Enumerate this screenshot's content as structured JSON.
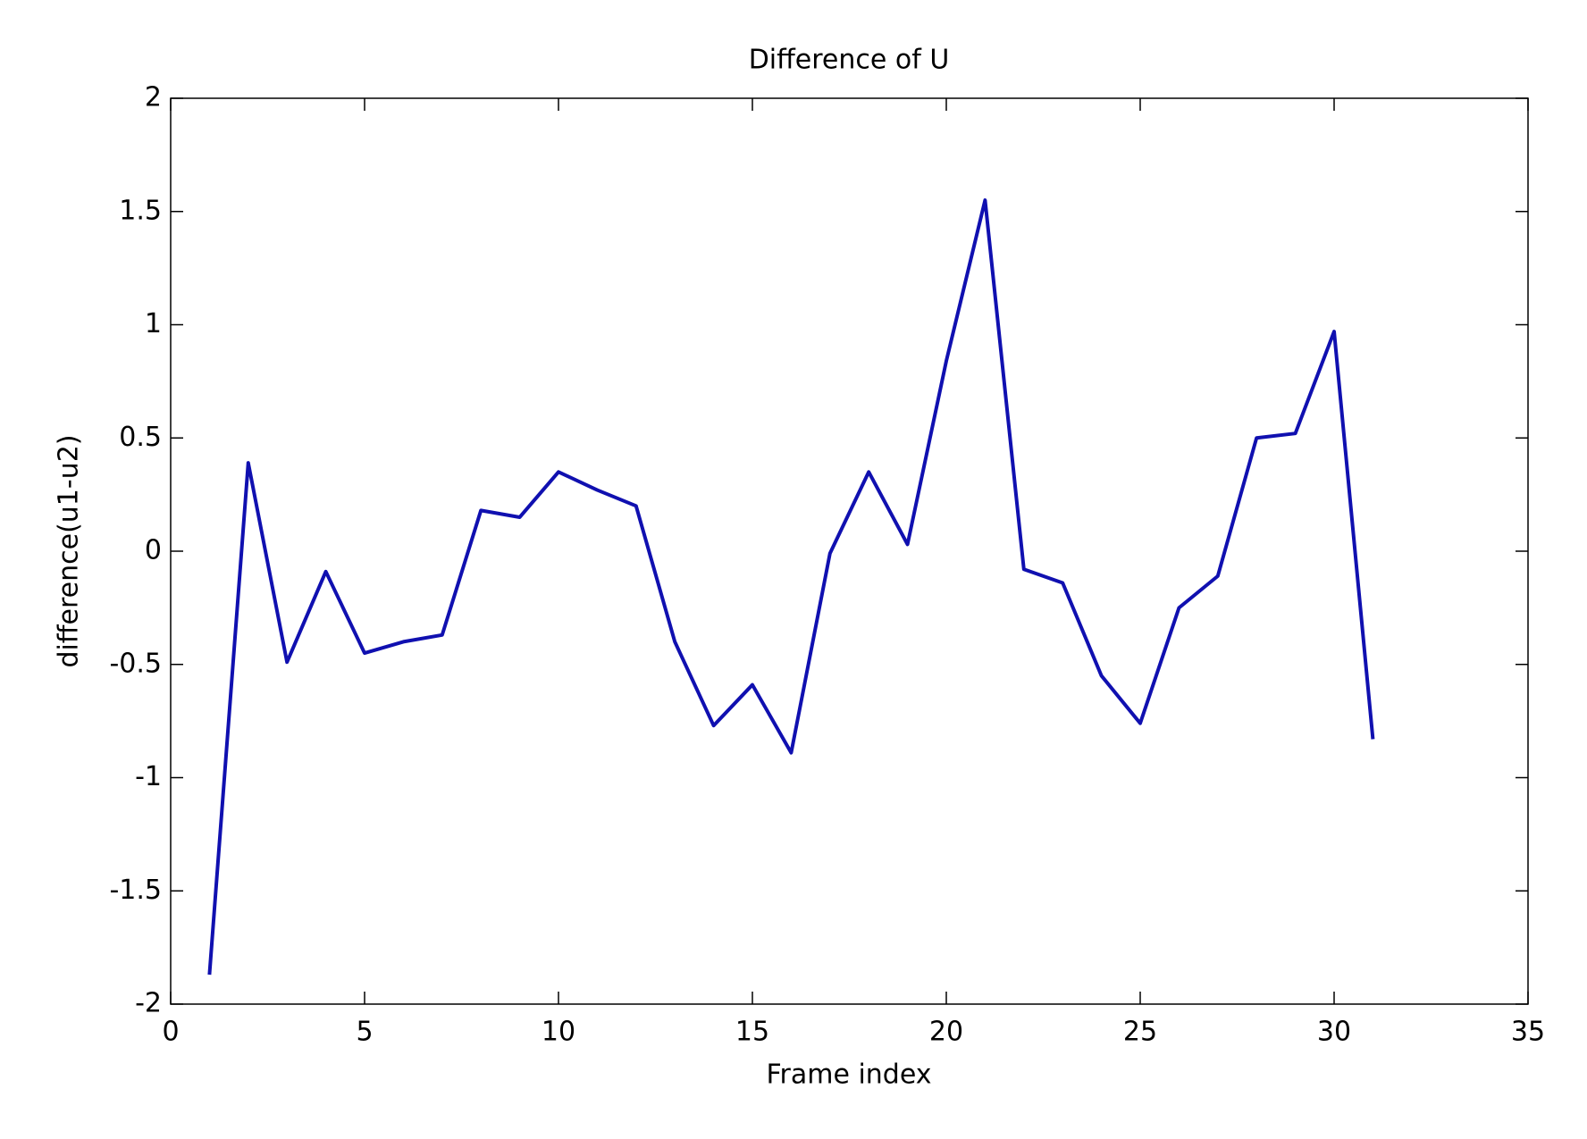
{
  "chart_data": {
    "type": "line",
    "title": "Difference of U",
    "xlabel": "Frame index",
    "ylabel": "difference(u1-u2)",
    "x": [
      1,
      2,
      3,
      4,
      5,
      6,
      7,
      8,
      9,
      10,
      11,
      12,
      13,
      14,
      15,
      16,
      17,
      18,
      19,
      20,
      21,
      22,
      23,
      24,
      25,
      26,
      27,
      28,
      29,
      30,
      31
    ],
    "series": [
      {
        "color": "#1010b0",
        "values": [
          -1.87,
          0.39,
          -0.49,
          -0.09,
          -0.45,
          -0.4,
          -0.37,
          0.18,
          0.15,
          0.35,
          0.27,
          0.2,
          -0.4,
          -0.77,
          -0.59,
          -0.89,
          -0.01,
          0.35,
          0.03,
          0.84,
          1.55,
          -0.08,
          -0.14,
          -0.55,
          -0.76,
          -0.25,
          -0.11,
          0.5,
          0.52,
          0.97,
          -0.83
        ]
      }
    ],
    "xlim": [
      0,
      35
    ],
    "xticks": [
      0,
      5,
      10,
      15,
      20,
      25,
      30,
      35
    ],
    "ylim": [
      -2,
      2
    ],
    "yticks": [
      -2,
      -1.5,
      -1,
      -0.5,
      0,
      0.5,
      1,
      1.5,
      2
    ]
  }
}
